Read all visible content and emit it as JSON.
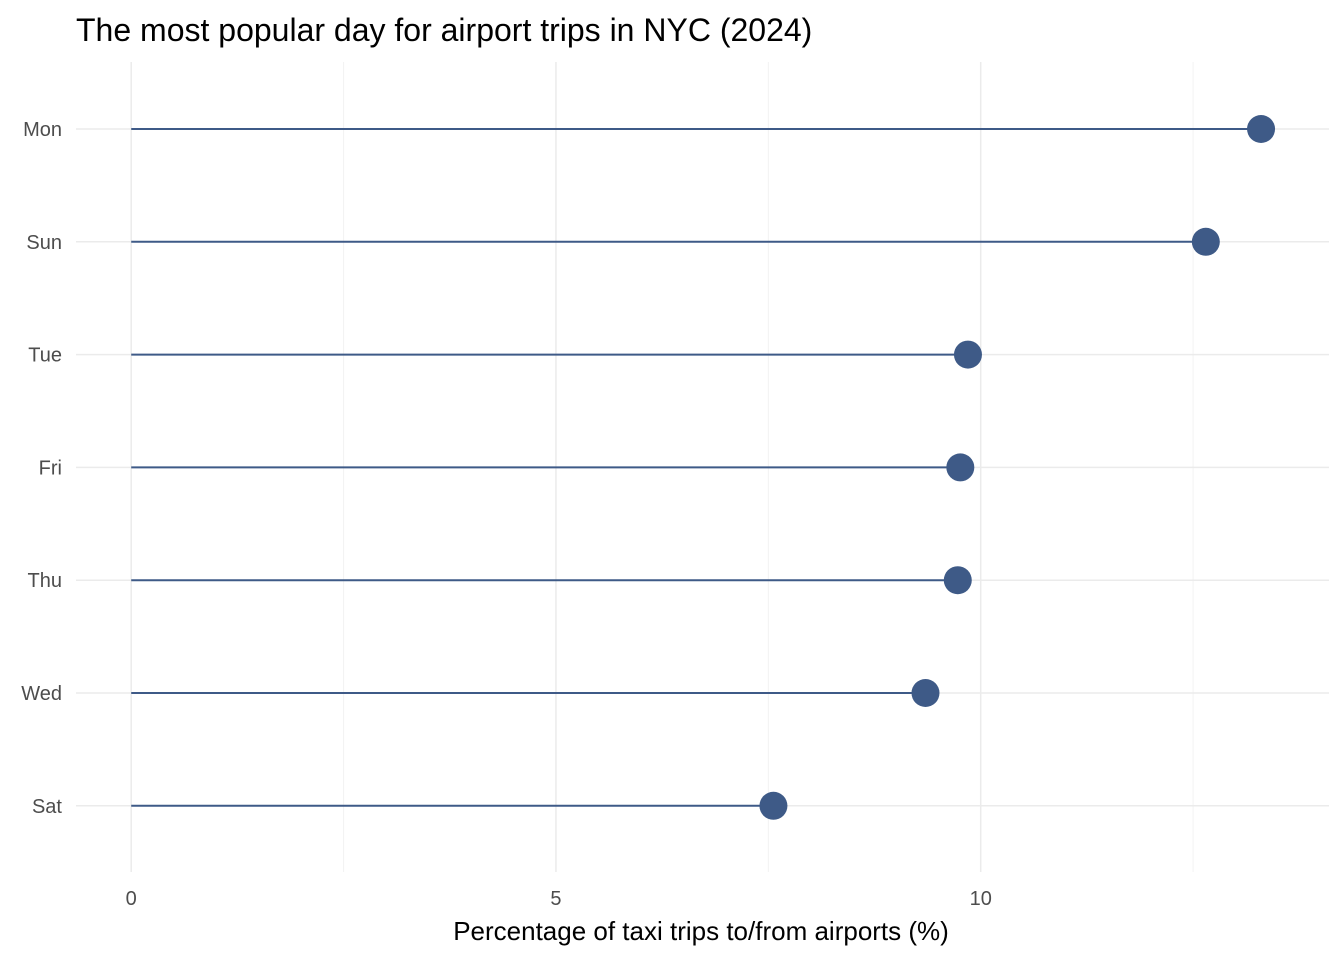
{
  "chart_data": {
    "type": "lollipop",
    "title": "The most popular day for airport trips in NYC (2024)",
    "xlabel": "Percentage of taxi trips to/from airports (%)",
    "ylabel": "",
    "categories": [
      "Mon",
      "Sun",
      "Tue",
      "Fri",
      "Thu",
      "Wed",
      "Sat"
    ],
    "values": [
      13.3,
      12.65,
      9.85,
      9.76,
      9.73,
      9.35,
      7.56
    ],
    "xlim": [
      -0.65,
      14.1
    ],
    "xticks": [
      0,
      5,
      10
    ],
    "xticks_labels": [
      "0",
      "5",
      "10"
    ],
    "minor_xticks": [
      2.5,
      7.5,
      12.5
    ],
    "grid": true,
    "legend": "none",
    "colors": {
      "mark": "#3e5a87",
      "grid_major": "#ebebeb",
      "grid_minor": "#f2f2f2",
      "tick_text": "#4d4d4d",
      "title_text": "#000000"
    }
  }
}
